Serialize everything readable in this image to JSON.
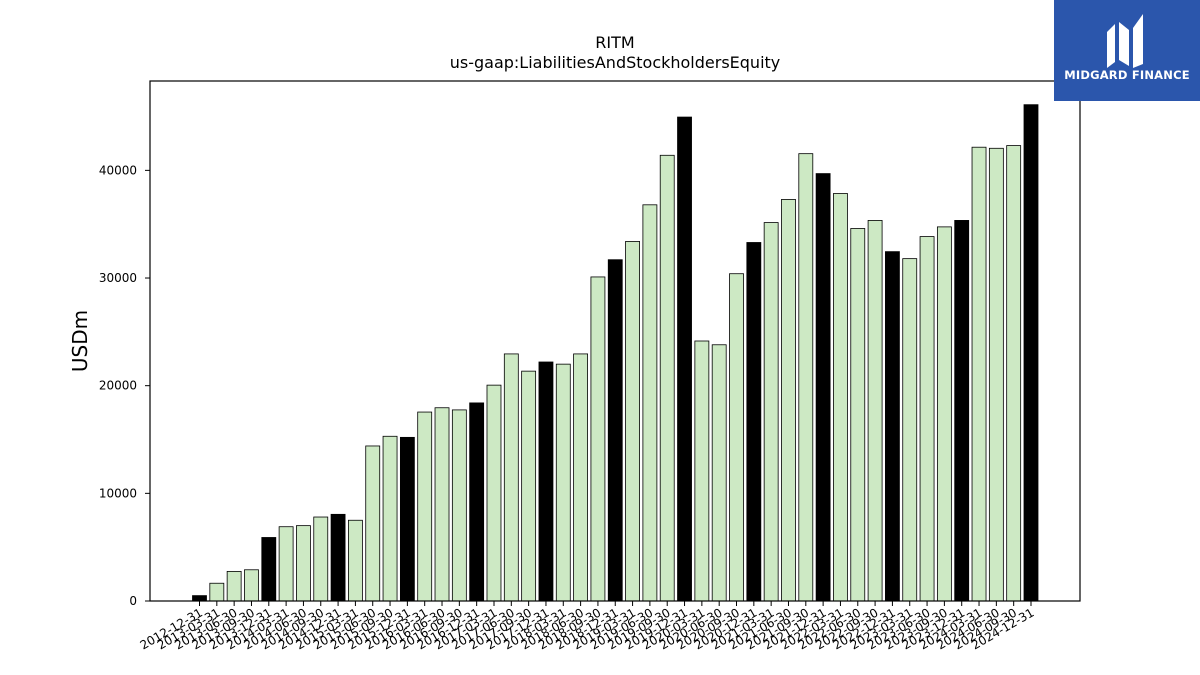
{
  "brand": {
    "name": "MIDGARD FINANCE",
    "background_color": "#2b56ac"
  },
  "chart_data": {
    "type": "bar",
    "title": "RITM",
    "subtitle": "us-gaap:LiabilitiesAndStockholdersEquity",
    "xlabel": "",
    "ylabel": "USDm",
    "ylim": [
      0,
      48300
    ],
    "yticks": [
      0,
      10000,
      20000,
      30000,
      40000
    ],
    "grid": false,
    "colors": {
      "quarter": "#cde9c4",
      "year_end": "#000000",
      "edge": "#000000"
    },
    "categories": [
      "2012-12-31",
      "2013-03-31",
      "2013-06-30",
      "2013-09-30",
      "2013-12-31",
      "2014-03-31",
      "2014-06-30",
      "2014-09-30",
      "2014-12-31",
      "2015-03-31",
      "2015-06-30",
      "2015-09-30",
      "2015-12-31",
      "2016-03-31",
      "2016-06-30",
      "2016-09-30",
      "2016-12-31",
      "2017-03-31",
      "2017-06-30",
      "2017-09-30",
      "2017-12-31",
      "2018-03-31",
      "2018-06-30",
      "2018-09-30",
      "2018-12-31",
      "2019-03-31",
      "2019-06-30",
      "2019-09-30",
      "2019-12-31",
      "2020-03-31",
      "2020-06-30",
      "2020-09-30",
      "2020-12-31",
      "2021-03-31",
      "2021-06-30",
      "2021-09-30",
      "2021-12-31",
      "2022-03-31",
      "2022-06-30",
      "2022-09-30",
      "2022-12-31",
      "2023-03-31",
      "2023-06-30",
      "2023-09-30",
      "2023-12-31",
      "2024-03-31",
      "2024-06-30",
      "2024-09-30",
      "2024-12-31"
    ],
    "values": [
      500,
      1650,
      2750,
      2900,
      5900,
      6900,
      7000,
      7800,
      8050,
      7500,
      14400,
      15300,
      15200,
      17550,
      17950,
      17750,
      18400,
      20050,
      22950,
      21350,
      22200,
      22000,
      22950,
      30100,
      31700,
      33400,
      36800,
      41400,
      44950,
      24150,
      23800,
      30400,
      33300,
      35150,
      37300,
      41550,
      39700,
      37850,
      34600,
      35350,
      32450,
      31800,
      33850,
      34750,
      35350,
      42150,
      42050,
      42300,
      46100
    ],
    "year_end": [
      true,
      false,
      false,
      false,
      true,
      false,
      false,
      false,
      true,
      false,
      false,
      false,
      true,
      false,
      false,
      false,
      true,
      false,
      false,
      false,
      true,
      false,
      false,
      false,
      true,
      false,
      false,
      false,
      true,
      false,
      false,
      false,
      true,
      false,
      false,
      false,
      true,
      false,
      false,
      false,
      true,
      false,
      false,
      false,
      true,
      false,
      false,
      false,
      true
    ]
  }
}
